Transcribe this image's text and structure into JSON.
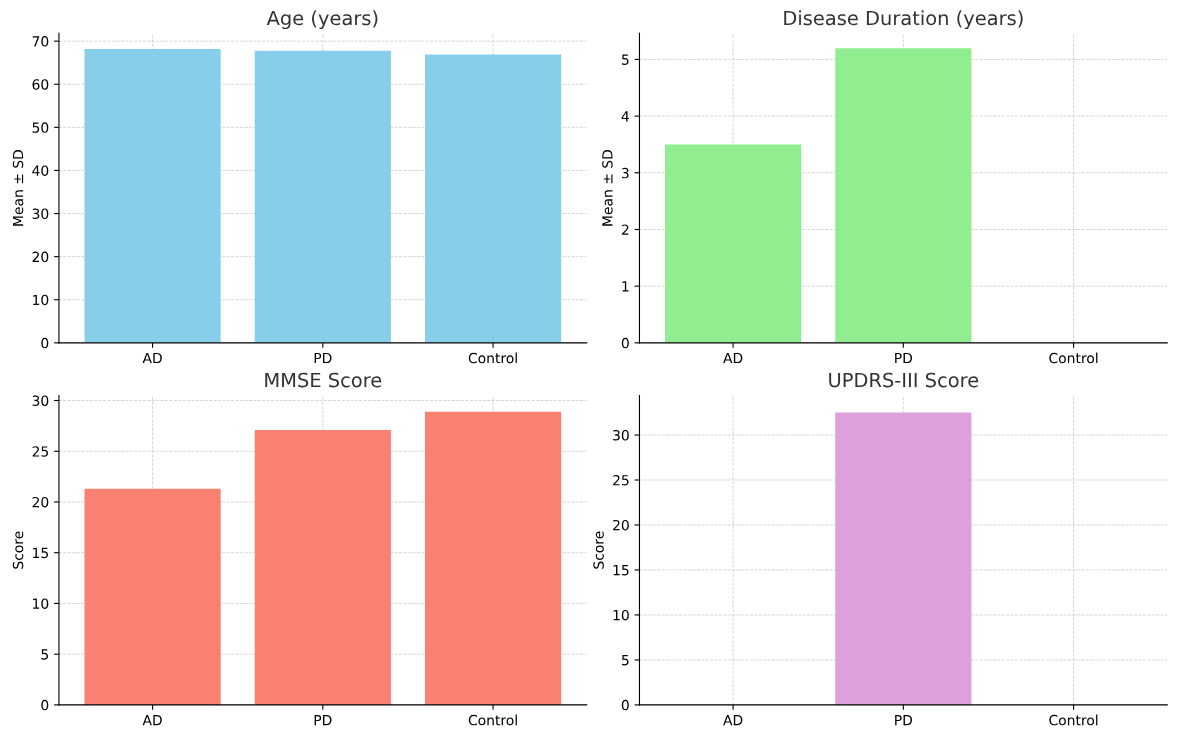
{
  "chart_data": [
    {
      "type": "bar",
      "title": "Age (years)",
      "ylabel": "Mean ± SD",
      "categories": [
        "AD",
        "PD",
        "Control"
      ],
      "values": [
        68.2,
        67.8,
        66.9
      ],
      "color": "#87ceeb",
      "ylim": [
        0,
        71.8
      ],
      "yticks": [
        0,
        10,
        20,
        30,
        40,
        50,
        60,
        70
      ],
      "grid": true
    },
    {
      "type": "bar",
      "title": "Disease Duration (years)",
      "ylabel": "Mean ± SD",
      "categories": [
        "AD",
        "PD",
        "Control"
      ],
      "values": [
        3.5,
        5.2,
        null
      ],
      "color": "#90ee90",
      "ylim": [
        0,
        5.46
      ],
      "yticks": [
        0,
        1,
        2,
        3,
        4,
        5
      ],
      "grid": true
    },
    {
      "type": "bar",
      "title": "MMSE Score",
      "ylabel": "Score",
      "categories": [
        "AD",
        "PD",
        "Control"
      ],
      "values": [
        21.3,
        27.1,
        28.9
      ],
      "color": "#fa8072",
      "ylim": [
        0,
        30.5
      ],
      "yticks": [
        0,
        5,
        10,
        15,
        20,
        25,
        30
      ],
      "grid": true
    },
    {
      "type": "bar",
      "title": "UPDRS-III Score",
      "ylabel": "Score",
      "categories": [
        "AD",
        "PD",
        "Control"
      ],
      "values": [
        null,
        32.5,
        null
      ],
      "color": "#dda0dd",
      "ylim": [
        0,
        34.4
      ],
      "yticks": [
        0,
        5,
        10,
        15,
        20,
        25,
        30
      ],
      "grid": true
    }
  ]
}
